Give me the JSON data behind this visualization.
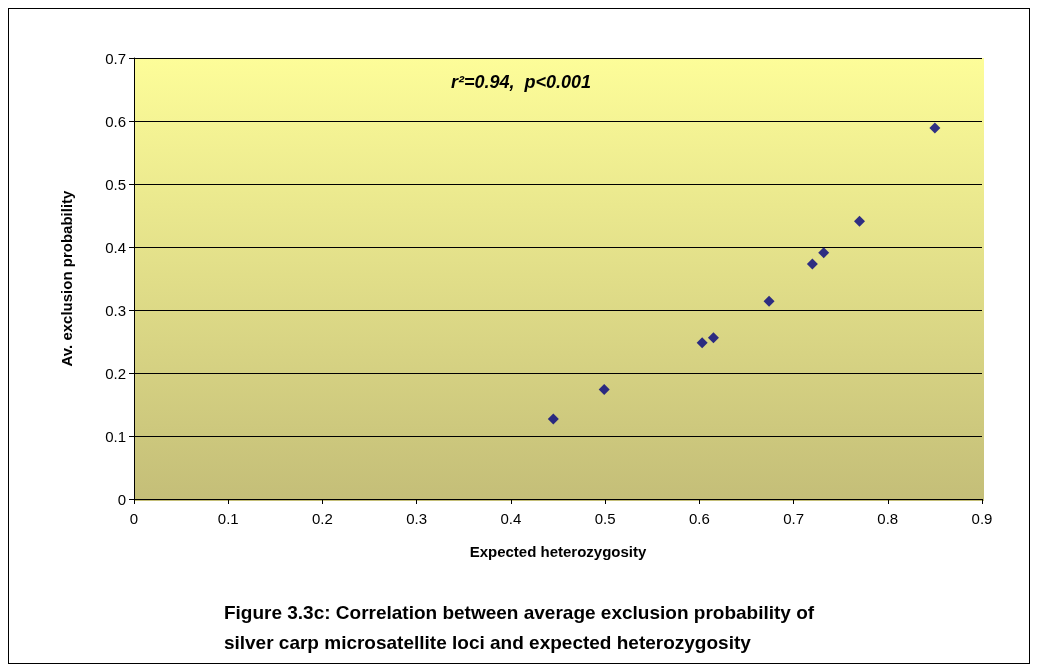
{
  "chart_data": {
    "type": "scatter",
    "xlabel": "Expected heterozygosity",
    "ylabel": "Av. exclusion probability",
    "x": [
      0.445,
      0.499,
      0.603,
      0.615,
      0.674,
      0.72,
      0.732,
      0.77,
      0.85
    ],
    "values": [
      0.127,
      0.174,
      0.248,
      0.256,
      0.314,
      0.373,
      0.391,
      0.441,
      0.589
    ],
    "color": "#000080",
    "marker": "diamond",
    "grid": "y",
    "xlim": [
      0,
      0.9
    ],
    "xticks": [
      0,
      0.1,
      0.2,
      0.3,
      0.4,
      0.5,
      0.6,
      0.7,
      0.8,
      0.9
    ],
    "ylim": [
      0,
      0.7
    ],
    "yticks": [
      0,
      0.1,
      0.2,
      0.3,
      0.4,
      0.5,
      0.6,
      0.7
    ],
    "annotations": [
      "r²=0.94,  p<0.001",
      "Figure 3.3c: Correlation between average exclusion probability of\nsilver carp microsatellite loci and expected heterozygosity"
    ]
  }
}
